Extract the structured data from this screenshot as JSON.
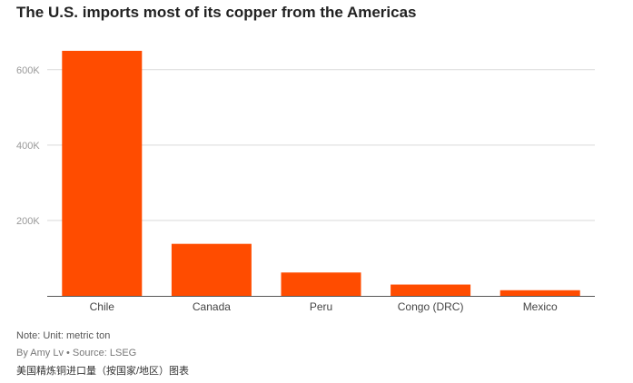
{
  "title": "The U.S. imports most of its copper from the Americas",
  "chart_data": {
    "type": "bar",
    "categories": [
      "Chile",
      "Canada",
      "Peru",
      "Congo (DRC)",
      "Mexico"
    ],
    "values": [
      650000,
      138000,
      62000,
      30000,
      15000
    ],
    "ylim": [
      0,
      650000
    ],
    "yticks": [
      0,
      200000,
      400000,
      600000
    ],
    "ytick_labels": [
      "",
      "200K",
      "400K",
      "600K"
    ],
    "grid": true,
    "bar_color": "#ff4c00",
    "title": "The U.S. imports most of its copper from the Americas"
  },
  "note": "Note: Unit: metric ton",
  "byline": "By Amy Lv • Source: LSEG",
  "caption": "美国精炼铜进口量（按国家/地区）图表"
}
